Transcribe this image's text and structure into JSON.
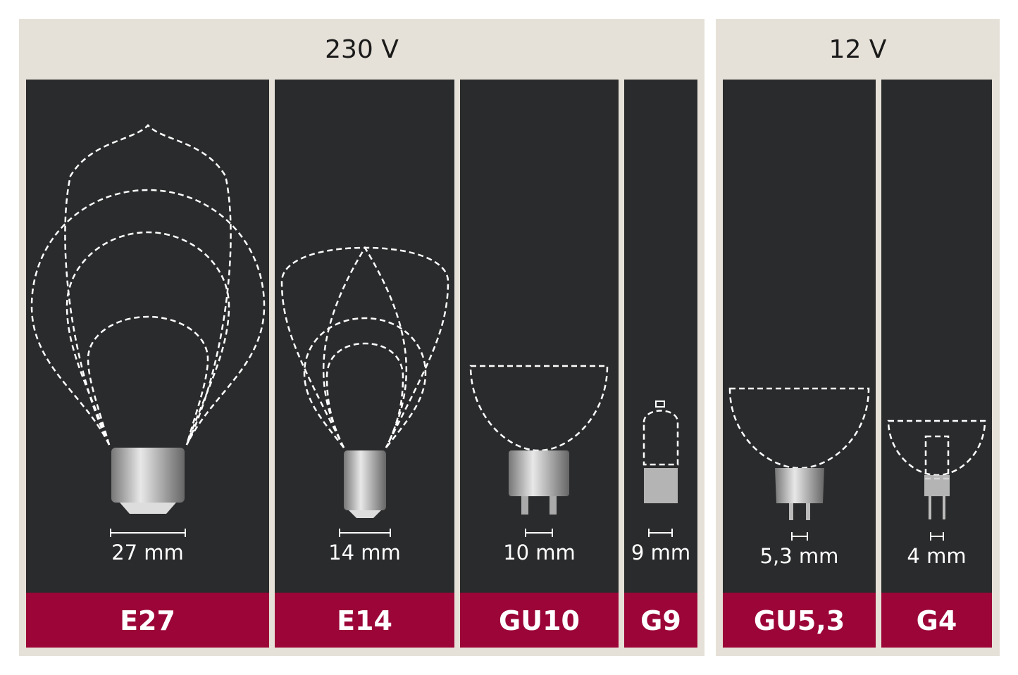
{
  "groups": [
    {
      "voltage": "230 V",
      "sockets": [
        {
          "name": "E27",
          "size": "27 mm"
        },
        {
          "name": "E14",
          "size": "14 mm"
        },
        {
          "name": "GU10",
          "size": "10 mm"
        },
        {
          "name": "G9",
          "size": "9 mm"
        }
      ]
    },
    {
      "voltage": "12 V",
      "sockets": [
        {
          "name": "GU5,3",
          "size": "5,3 mm"
        },
        {
          "name": "G4",
          "size": "4 mm"
        }
      ]
    }
  ],
  "colors": {
    "panel": "#e6e1d8",
    "column": "#2a2b2c",
    "label_band": "#9b0537",
    "outline": "#ffffff"
  }
}
